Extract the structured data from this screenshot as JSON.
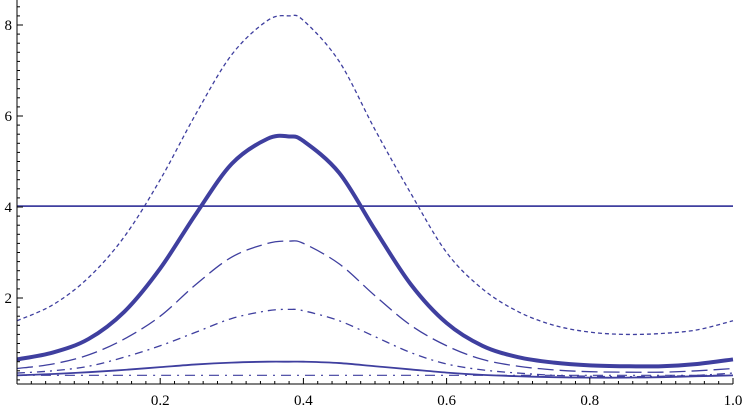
{
  "chart_data": {
    "type": "line",
    "title": "",
    "xlabel": "",
    "ylabel": "",
    "xlim": [
      0.0,
      1.0
    ],
    "ylim": [
      0.0,
      8.7
    ],
    "grid": false,
    "legend": "none",
    "x_ticks": [
      {
        "value": 0.2,
        "label": "0.2"
      },
      {
        "value": 0.4,
        "label": "0.4"
      },
      {
        "value": 0.6,
        "label": "0.6"
      },
      {
        "value": 0.8,
        "label": "0.8"
      },
      {
        "value": 1.0,
        "label": "1.0"
      }
    ],
    "y_ticks": [
      {
        "value": 2,
        "label": "2"
      },
      {
        "value": 4,
        "label": "4"
      },
      {
        "value": 6,
        "label": "6"
      },
      {
        "value": 8,
        "label": "8"
      }
    ],
    "line_color": "#3f3f9f",
    "series": [
      {
        "style": "short-dashed-thin",
        "x": [
          0.0,
          0.05,
          0.1,
          0.15,
          0.2,
          0.25,
          0.3,
          0.35,
          0.38,
          0.4,
          0.45,
          0.5,
          0.55,
          0.6,
          0.65,
          0.7,
          0.75,
          0.8,
          0.85,
          0.9,
          0.95,
          1.0
        ],
        "y": [
          1.5,
          1.85,
          2.45,
          3.35,
          4.6,
          6.05,
          7.35,
          8.1,
          8.2,
          8.1,
          7.2,
          5.7,
          4.3,
          3.0,
          2.2,
          1.7,
          1.4,
          1.25,
          1.2,
          1.22,
          1.3,
          1.5
        ]
      },
      {
        "style": "solid-thick",
        "x": [
          0.0,
          0.05,
          0.1,
          0.15,
          0.2,
          0.25,
          0.3,
          0.35,
          0.38,
          0.4,
          0.45,
          0.5,
          0.55,
          0.6,
          0.65,
          0.7,
          0.75,
          0.8,
          0.85,
          0.9,
          0.95,
          1.0
        ],
        "y": [
          0.65,
          0.8,
          1.1,
          1.7,
          2.65,
          3.85,
          4.95,
          5.5,
          5.55,
          5.45,
          4.75,
          3.5,
          2.3,
          1.45,
          0.95,
          0.7,
          0.58,
          0.52,
          0.5,
          0.5,
          0.55,
          0.65
        ]
      },
      {
        "style": "long-dashed",
        "x": [
          0.0,
          0.05,
          0.1,
          0.15,
          0.2,
          0.25,
          0.3,
          0.35,
          0.38,
          0.4,
          0.45,
          0.5,
          0.55,
          0.6,
          0.65,
          0.7,
          0.75,
          0.8,
          0.85,
          0.9,
          0.95,
          1.0
        ],
        "y": [
          0.45,
          0.55,
          0.75,
          1.1,
          1.6,
          2.3,
          2.9,
          3.2,
          3.25,
          3.2,
          2.75,
          2.05,
          1.4,
          0.95,
          0.65,
          0.5,
          0.42,
          0.38,
          0.37,
          0.37,
          0.4,
          0.45
        ]
      },
      {
        "style": "dash-dot",
        "x": [
          0.0,
          0.05,
          0.1,
          0.15,
          0.2,
          0.25,
          0.3,
          0.35,
          0.38,
          0.4,
          0.45,
          0.5,
          0.55,
          0.6,
          0.65,
          0.7,
          0.75,
          0.8,
          0.85,
          0.9,
          0.95,
          1.0
        ],
        "y": [
          0.35,
          0.4,
          0.5,
          0.7,
          0.95,
          1.25,
          1.55,
          1.72,
          1.75,
          1.72,
          1.5,
          1.15,
          0.8,
          0.55,
          0.42,
          0.35,
          0.3,
          0.28,
          0.27,
          0.28,
          0.3,
          0.35
        ]
      },
      {
        "style": "solid-thin",
        "x": [
          0.0,
          0.05,
          0.1,
          0.15,
          0.2,
          0.25,
          0.3,
          0.35,
          0.38,
          0.4,
          0.45,
          0.5,
          0.55,
          0.6,
          0.65,
          0.7,
          0.75,
          0.8,
          0.85,
          0.9,
          0.95,
          1.0
        ],
        "y": [
          0.3,
          0.33,
          0.37,
          0.42,
          0.48,
          0.54,
          0.58,
          0.6,
          0.6,
          0.6,
          0.57,
          0.5,
          0.43,
          0.36,
          0.31,
          0.28,
          0.26,
          0.25,
          0.25,
          0.26,
          0.28,
          0.3
        ]
      },
      {
        "style": "dash-dot-thin",
        "x": [
          0.0,
          0.25,
          0.5,
          0.75,
          1.0
        ],
        "y": [
          0.3,
          0.3,
          0.3,
          0.3,
          0.3
        ]
      },
      {
        "style": "solid-horizontal",
        "x": [
          0.0,
          1.0
        ],
        "y": [
          4.02,
          4.02
        ]
      }
    ]
  }
}
